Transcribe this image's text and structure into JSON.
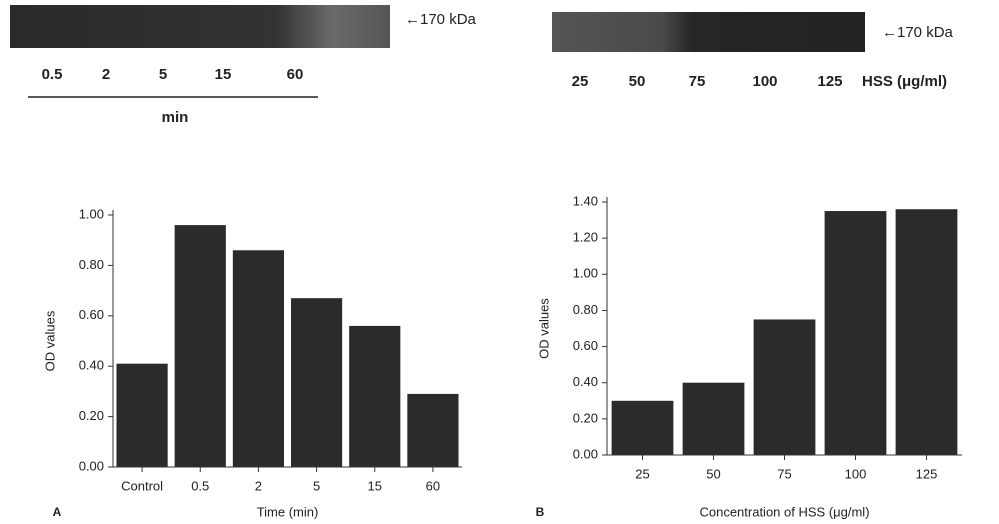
{
  "chart_data": [
    {
      "type": "bar",
      "panel_label": "A",
      "blot": {
        "marker": "←170 kDa",
        "lanes": [
          "0.5",
          "2",
          "5",
          "15",
          "60"
        ],
        "unit": "min"
      },
      "categories": [
        "Control",
        "0.5",
        "2",
        "5",
        "15",
        "60"
      ],
      "values": [
        0.41,
        0.96,
        0.86,
        0.67,
        0.56,
        0.29
      ],
      "color": "#2b2b2b",
      "ylabel": "OD values",
      "xlabel": "Time (min)",
      "ylim": [
        0,
        1
      ],
      "yticks": [
        {
          "value": 0,
          "label": "0.00"
        },
        {
          "value": 0.2,
          "label": "0.20"
        },
        {
          "value": 0.4,
          "label": "0.40"
        },
        {
          "value": 0.6,
          "label": "0.60"
        },
        {
          "value": 0.8,
          "label": "0.80"
        },
        {
          "value": 1,
          "label": "1.00"
        }
      ]
    },
    {
      "type": "bar",
      "panel_label": "B",
      "blot": {
        "marker": "←170 kDa",
        "lanes": [
          "25",
          "50",
          "75",
          "100",
          "125"
        ],
        "unit": "HSS (μg/ml)"
      },
      "categories": [
        "25",
        "50",
        "75",
        "100",
        "125"
      ],
      "values": [
        0.3,
        0.4,
        0.75,
        1.35,
        1.36
      ],
      "color": "#2b2b2b",
      "ylabel": "OD values",
      "xlabel": "Concentration of HSS (μg/ml)",
      "ylim": [
        0,
        1.4
      ],
      "yticks": [
        {
          "value": 0,
          "label": "0.00"
        },
        {
          "value": 0.2,
          "label": "0.20"
        },
        {
          "value": 0.4,
          "label": "0.40"
        },
        {
          "value": 0.6,
          "label": "0.60"
        },
        {
          "value": 0.8,
          "label": "0.80"
        },
        {
          "value": 1,
          "label": "1.00"
        },
        {
          "value": 1.2,
          "label": "1.20"
        },
        {
          "value": 1.4,
          "label": "1.40"
        }
      ]
    }
  ]
}
